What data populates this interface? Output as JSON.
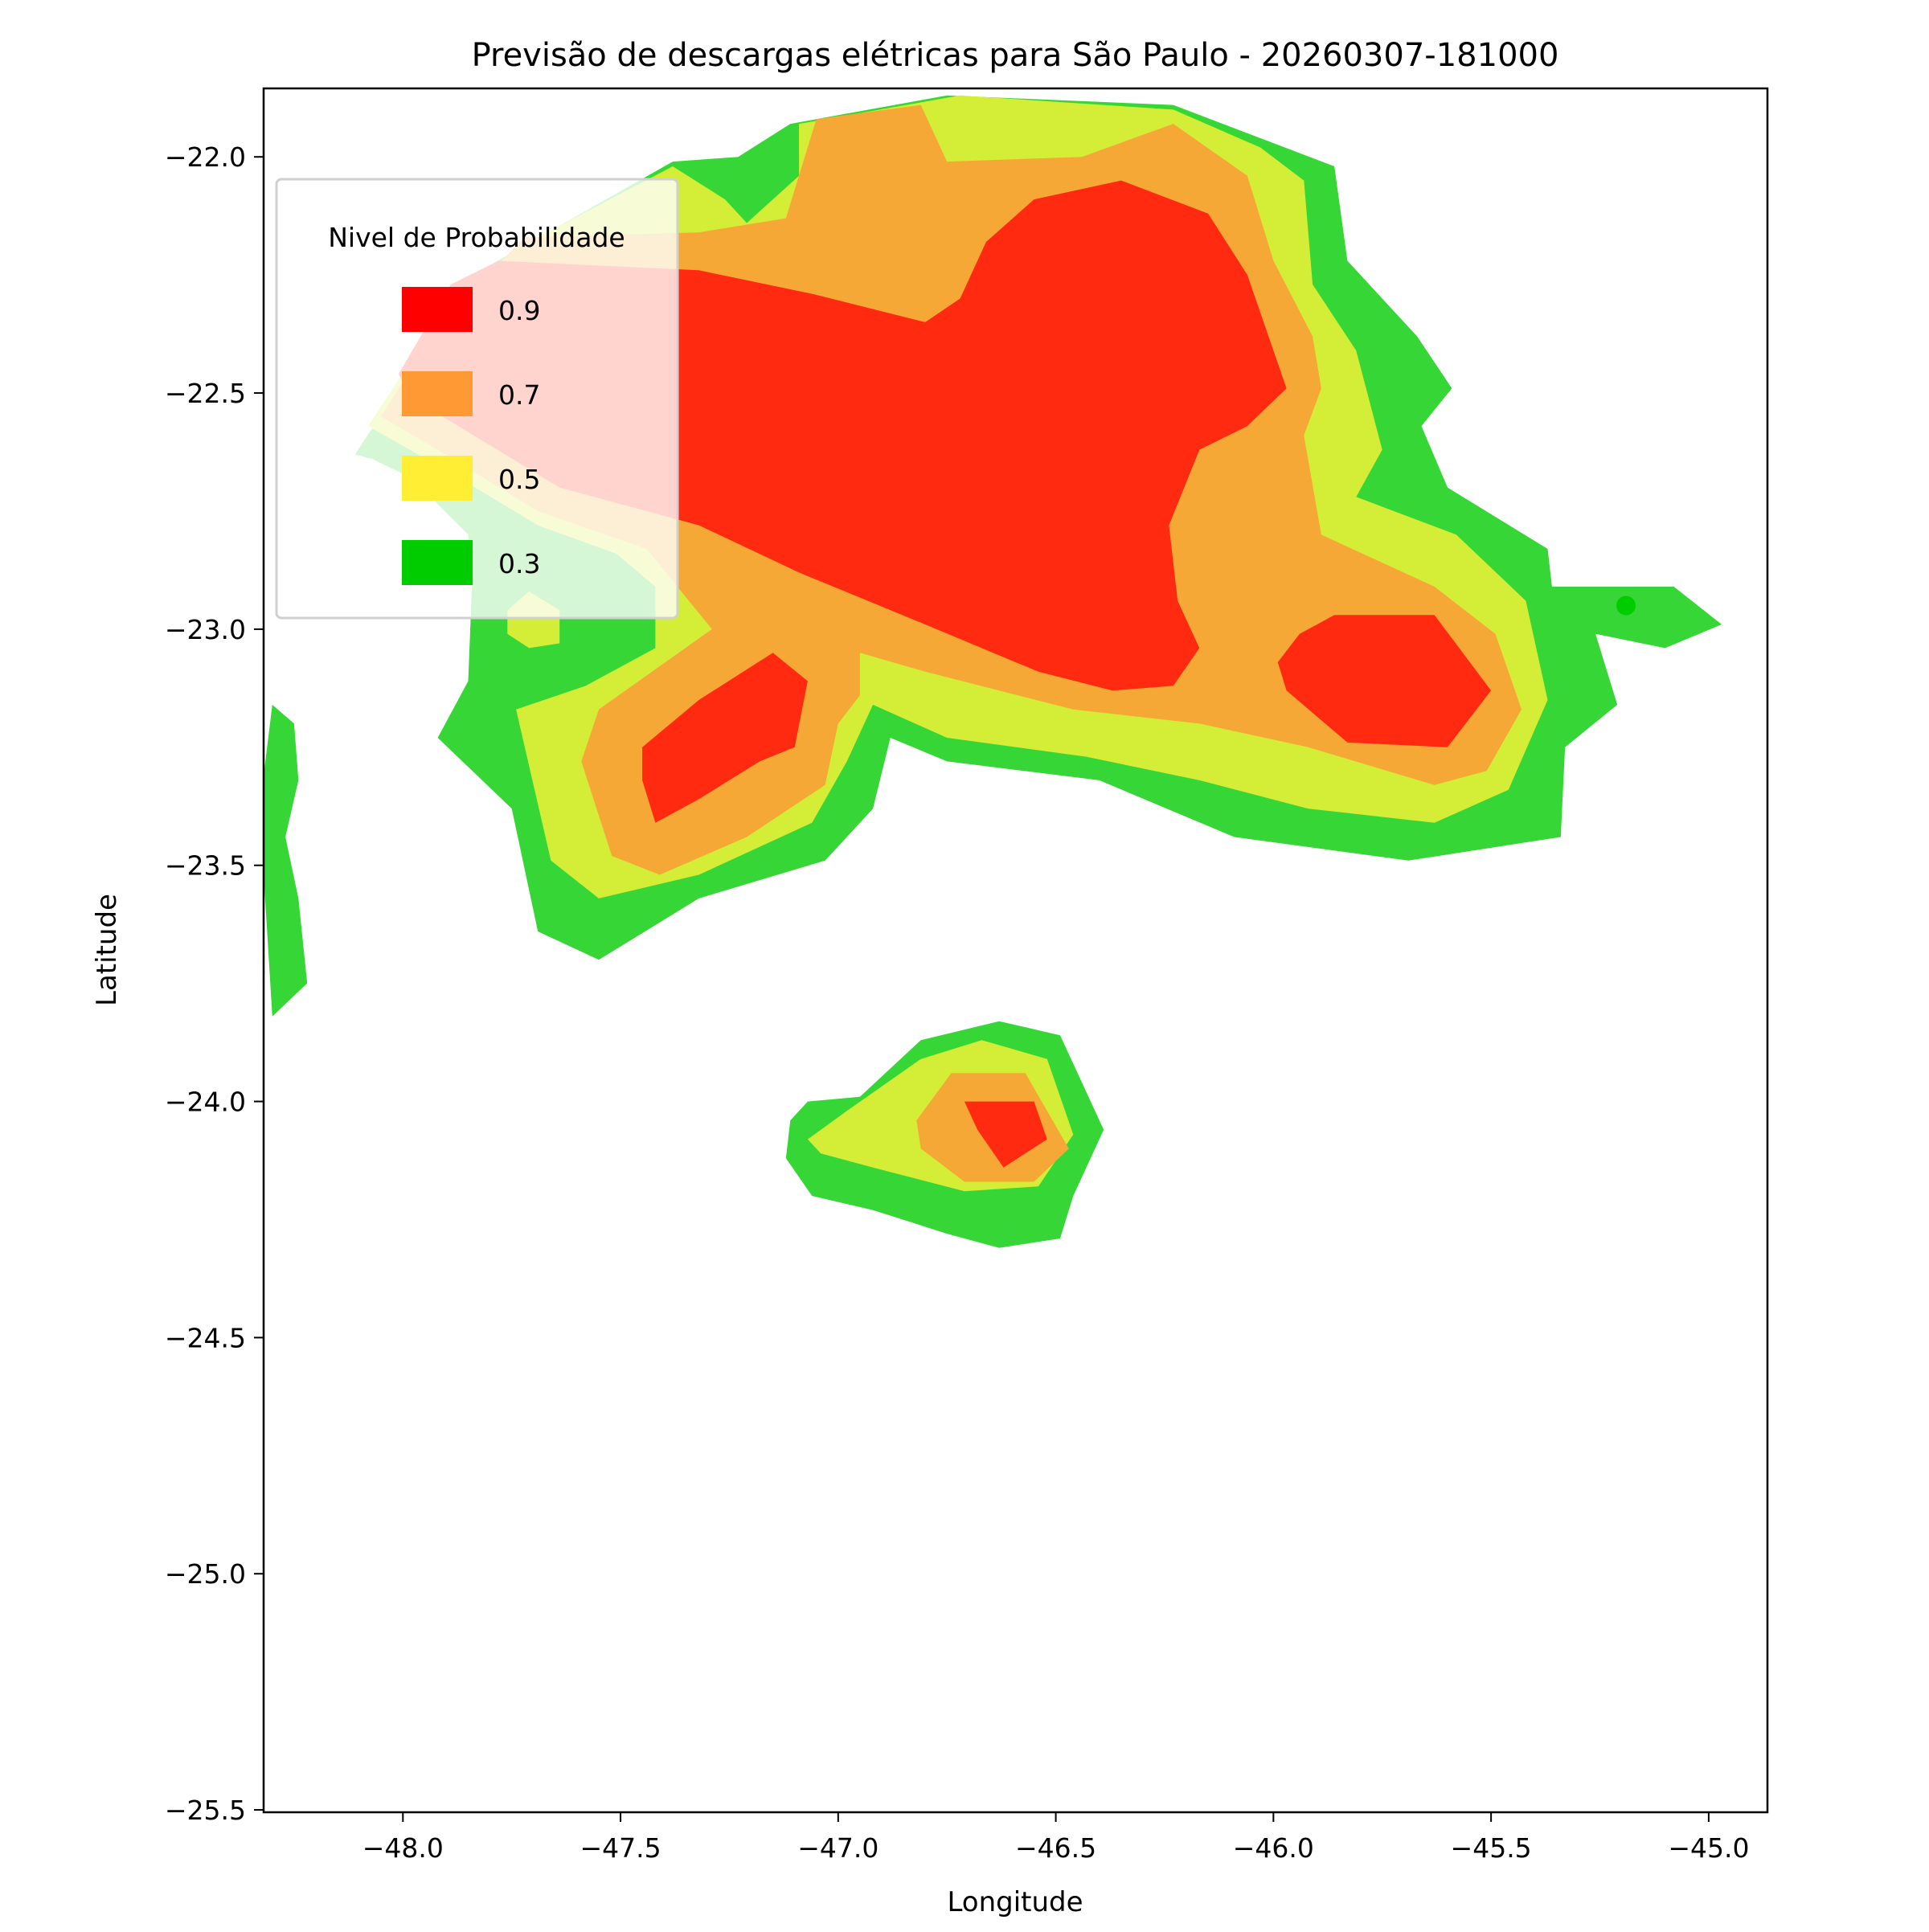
{
  "chart_data": {
    "type": "contourf",
    "title": "Previsão de descargas elétricas para São Paulo - 20260307-181000",
    "xlabel": "Longitude",
    "ylabel": "Latitude",
    "xlim": [
      -48.32,
      -44.865
    ],
    "ylim": [
      -25.505,
      -21.855
    ],
    "xticks": [
      -48.0,
      -47.5,
      -47.0,
      -46.5,
      -46.0,
      -45.5,
      -45.0
    ],
    "xtick_labels": [
      "−48.0",
      "−47.5",
      "−47.0",
      "−46.5",
      "−46.0",
      "−45.5",
      "−45.0"
    ],
    "yticks": [
      -22.0,
      -22.5,
      -23.0,
      -23.5,
      -24.0,
      -24.5,
      -25.0,
      -25.5
    ],
    "ytick_labels": [
      "−22.0",
      "−22.5",
      "−23.0",
      "−23.5",
      "−24.0",
      "−24.5",
      "−25.0",
      "−25.5"
    ],
    "grid": false,
    "legend": {
      "title": "Nivel de Probabilidade",
      "placement": "upper-left",
      "entries": [
        {
          "label": "0.9",
          "color": "#ff0000"
        },
        {
          "label": "0.7",
          "color": "#ff9933"
        },
        {
          "label": "0.5",
          "color": "#ffee33"
        },
        {
          "label": "0.3",
          "color": "#00cc00"
        }
      ]
    },
    "level_fill_colors": {
      "0.3": "#36d636",
      "0.5": "#d4ed37",
      "0.7": "#f5a836",
      "0.9": "#ff2a10"
    },
    "regions": [
      {
        "level": "0.3",
        "points": [
          [
            -48.11,
            -22.63
          ],
          [
            -47.84,
            -22.25
          ],
          [
            -47.38,
            -22.01
          ],
          [
            -47.23,
            -22.0
          ],
          [
            -47.11,
            -21.93
          ],
          [
            -46.75,
            -21.87
          ],
          [
            -46.23,
            -21.89
          ],
          [
            -45.86,
            -22.02
          ],
          [
            -45.83,
            -22.22
          ],
          [
            -45.67,
            -22.38
          ],
          [
            -45.59,
            -22.49
          ],
          [
            -45.66,
            -22.57
          ],
          [
            -45.6,
            -22.7
          ],
          [
            -45.37,
            -22.83
          ],
          [
            -45.36,
            -22.91
          ],
          [
            -45.08,
            -22.91
          ],
          [
            -44.97,
            -22.99
          ],
          [
            -45.1,
            -23.04
          ],
          [
            -45.26,
            -23.01
          ],
          [
            -45.21,
            -23.16
          ],
          [
            -45.33,
            -23.25
          ],
          [
            -45.34,
            -23.44
          ],
          [
            -45.69,
            -23.49
          ],
          [
            -46.09,
            -23.44
          ],
          [
            -46.4,
            -23.32
          ],
          [
            -46.75,
            -23.28
          ],
          [
            -46.88,
            -23.23
          ],
          [
            -46.92,
            -23.38
          ],
          [
            -47.03,
            -23.49
          ],
          [
            -47.32,
            -23.57
          ],
          [
            -47.55,
            -23.7
          ],
          [
            -47.69,
            -23.64
          ],
          [
            -47.75,
            -23.38
          ],
          [
            -47.92,
            -23.23
          ],
          [
            -47.85,
            -23.11
          ],
          [
            -47.84,
            -22.88
          ],
          [
            -47.85,
            -22.8
          ],
          [
            -47.98,
            -22.68
          ],
          [
            -48.07,
            -22.64
          ]
        ]
      },
      {
        "level": "0.3",
        "points": [
          [
            -48.3,
            -23.16
          ],
          [
            -48.25,
            -23.2
          ],
          [
            -48.24,
            -23.32
          ],
          [
            -48.27,
            -23.44
          ],
          [
            -48.24,
            -23.57
          ],
          [
            -48.22,
            -23.75
          ],
          [
            -48.3,
            -23.82
          ],
          [
            -48.32,
            -23.52
          ],
          [
            -48.32,
            -23.31
          ]
        ]
      },
      {
        "level": "0.3",
        "points": [
          [
            -47.11,
            -24.04
          ],
          [
            -47.07,
            -24.0
          ],
          [
            -46.95,
            -23.99
          ],
          [
            -46.81,
            -23.87
          ],
          [
            -46.63,
            -23.83
          ],
          [
            -46.49,
            -23.86
          ],
          [
            -46.39,
            -24.06
          ],
          [
            -46.46,
            -24.2
          ],
          [
            -46.49,
            -24.29
          ],
          [
            -46.63,
            -24.31
          ],
          [
            -46.75,
            -24.28
          ],
          [
            -46.92,
            -24.23
          ],
          [
            -47.06,
            -24.2
          ],
          [
            -47.12,
            -24.12
          ]
        ]
      },
      {
        "level": "0.5",
        "points": [
          [
            -48.08,
            -22.57
          ],
          [
            -47.98,
            -22.43
          ],
          [
            -47.69,
            -22.17
          ],
          [
            -47.38,
            -22.02
          ],
          [
            -47.26,
            -22.09
          ],
          [
            -47.21,
            -22.14
          ],
          [
            -47.09,
            -22.04
          ],
          [
            -47.09,
            -21.93
          ],
          [
            -46.72,
            -21.87
          ],
          [
            -46.23,
            -21.9
          ],
          [
            -46.03,
            -21.98
          ],
          [
            -45.93,
            -22.05
          ],
          [
            -45.91,
            -22.27
          ],
          [
            -45.81,
            -22.41
          ],
          [
            -45.75,
            -22.62
          ],
          [
            -45.81,
            -22.72
          ],
          [
            -45.58,
            -22.8
          ],
          [
            -45.42,
            -22.94
          ],
          [
            -45.37,
            -23.15
          ],
          [
            -45.46,
            -23.34
          ],
          [
            -45.63,
            -23.41
          ],
          [
            -45.92,
            -23.38
          ],
          [
            -46.17,
            -23.32
          ],
          [
            -46.43,
            -23.27
          ],
          [
            -46.75,
            -23.23
          ],
          [
            -46.92,
            -23.16
          ],
          [
            -46.98,
            -23.28
          ],
          [
            -47.06,
            -23.41
          ],
          [
            -47.32,
            -23.52
          ],
          [
            -47.55,
            -23.57
          ],
          [
            -47.66,
            -23.49
          ],
          [
            -47.74,
            -23.17
          ],
          [
            -47.58,
            -23.12
          ],
          [
            -47.42,
            -23.04
          ],
          [
            -47.42,
            -22.91
          ],
          [
            -47.51,
            -22.84
          ],
          [
            -47.69,
            -22.78
          ],
          [
            -47.87,
            -22.68
          ]
        ]
      },
      {
        "level": "0.5",
        "points": [
          [
            -47.76,
            -22.96
          ],
          [
            -47.71,
            -22.92
          ],
          [
            -47.64,
            -22.96
          ],
          [
            -47.64,
            -23.03
          ],
          [
            -47.71,
            -23.04
          ],
          [
            -47.76,
            -23.01
          ]
        ]
      },
      {
        "level": "0.5",
        "points": [
          [
            -47.07,
            -24.08
          ],
          [
            -46.98,
            -24.02
          ],
          [
            -46.81,
            -23.91
          ],
          [
            -46.67,
            -23.87
          ],
          [
            -46.52,
            -23.91
          ],
          [
            -46.46,
            -24.07
          ],
          [
            -46.54,
            -24.18
          ],
          [
            -46.71,
            -24.19
          ],
          [
            -46.92,
            -24.14
          ],
          [
            -47.04,
            -24.11
          ]
        ]
      },
      {
        "level": "0.7",
        "points": [
          [
            -48.05,
            -22.55
          ],
          [
            -48.01,
            -22.49
          ],
          [
            -47.89,
            -22.33
          ],
          [
            -47.72,
            -22.17
          ],
          [
            -47.32,
            -22.16
          ],
          [
            -47.12,
            -22.13
          ],
          [
            -47.05,
            -21.92
          ],
          [
            -46.81,
            -21.89
          ],
          [
            -46.75,
            -22.01
          ],
          [
            -46.44,
            -22.0
          ],
          [
            -46.23,
            -21.93
          ],
          [
            -46.06,
            -22.04
          ],
          [
            -46.0,
            -22.22
          ],
          [
            -45.91,
            -22.38
          ],
          [
            -45.89,
            -22.49
          ],
          [
            -45.93,
            -22.59
          ],
          [
            -45.89,
            -22.8
          ],
          [
            -45.63,
            -22.91
          ],
          [
            -45.49,
            -23.01
          ],
          [
            -45.43,
            -23.17
          ],
          [
            -45.51,
            -23.3
          ],
          [
            -45.63,
            -23.33
          ],
          [
            -45.92,
            -23.25
          ],
          [
            -46.17,
            -23.2
          ],
          [
            -46.46,
            -23.17
          ],
          [
            -46.8,
            -23.09
          ],
          [
            -46.95,
            -23.05
          ],
          [
            -46.95,
            -23.14
          ],
          [
            -47.0,
            -23.2
          ],
          [
            -47.03,
            -23.33
          ],
          [
            -47.21,
            -23.44
          ],
          [
            -47.41,
            -23.52
          ],
          [
            -47.52,
            -23.48
          ],
          [
            -47.59,
            -23.28
          ],
          [
            -47.55,
            -23.17
          ],
          [
            -47.29,
            -23.0
          ],
          [
            -47.44,
            -22.83
          ],
          [
            -47.69,
            -22.75
          ],
          [
            -47.92,
            -22.62
          ]
        ]
      },
      {
        "level": "0.7",
        "points": [
          [
            -46.82,
            -24.04
          ],
          [
            -46.74,
            -23.94
          ],
          [
            -46.57,
            -23.94
          ],
          [
            -46.47,
            -24.1
          ],
          [
            -46.55,
            -24.17
          ],
          [
            -46.71,
            -24.17
          ],
          [
            -46.81,
            -24.1
          ]
        ]
      },
      {
        "level": "0.9",
        "points": [
          [
            -48.01,
            -22.46
          ],
          [
            -47.89,
            -22.27
          ],
          [
            -47.78,
            -22.22
          ],
          [
            -47.32,
            -22.24
          ],
          [
            -47.06,
            -22.29
          ],
          [
            -46.8,
            -22.35
          ],
          [
            -46.72,
            -22.3
          ],
          [
            -46.66,
            -22.18
          ],
          [
            -46.55,
            -22.09
          ],
          [
            -46.35,
            -22.05
          ],
          [
            -46.15,
            -22.12
          ],
          [
            -46.06,
            -22.25
          ],
          [
            -45.97,
            -22.49
          ],
          [
            -46.06,
            -22.57
          ],
          [
            -46.17,
            -22.62
          ],
          [
            -46.24,
            -22.78
          ],
          [
            -46.22,
            -22.94
          ],
          [
            -46.17,
            -23.04
          ],
          [
            -46.23,
            -23.12
          ],
          [
            -46.37,
            -23.13
          ],
          [
            -46.54,
            -23.09
          ],
          [
            -46.8,
            -22.99
          ],
          [
            -47.09,
            -22.88
          ],
          [
            -47.32,
            -22.78
          ],
          [
            -47.64,
            -22.7
          ],
          [
            -47.98,
            -22.51
          ]
        ]
      },
      {
        "level": "0.9",
        "points": [
          [
            -47.45,
            -23.25
          ],
          [
            -47.32,
            -23.15
          ],
          [
            -47.15,
            -23.05
          ],
          [
            -47.07,
            -23.11
          ],
          [
            -47.1,
            -23.25
          ],
          [
            -47.18,
            -23.28
          ],
          [
            -47.32,
            -23.36
          ],
          [
            -47.42,
            -23.41
          ],
          [
            -47.45,
            -23.32
          ]
        ]
      },
      {
        "level": "0.9",
        "points": [
          [
            -45.94,
            -23.01
          ],
          [
            -45.86,
            -22.97
          ],
          [
            -45.63,
            -22.97
          ],
          [
            -45.5,
            -23.13
          ],
          [
            -45.6,
            -23.25
          ],
          [
            -45.83,
            -23.24
          ],
          [
            -45.97,
            -23.13
          ],
          [
            -45.99,
            -23.07
          ]
        ]
      },
      {
        "level": "0.9",
        "points": [
          [
            -46.71,
            -24.0
          ],
          [
            -46.55,
            -24.0
          ],
          [
            -46.52,
            -24.08
          ],
          [
            -46.62,
            -24.14
          ],
          [
            -46.68,
            -24.06
          ]
        ]
      }
    ],
    "points": [
      {
        "lon": -45.19,
        "lat": -22.95,
        "color": "#00cc00"
      }
    ]
  }
}
